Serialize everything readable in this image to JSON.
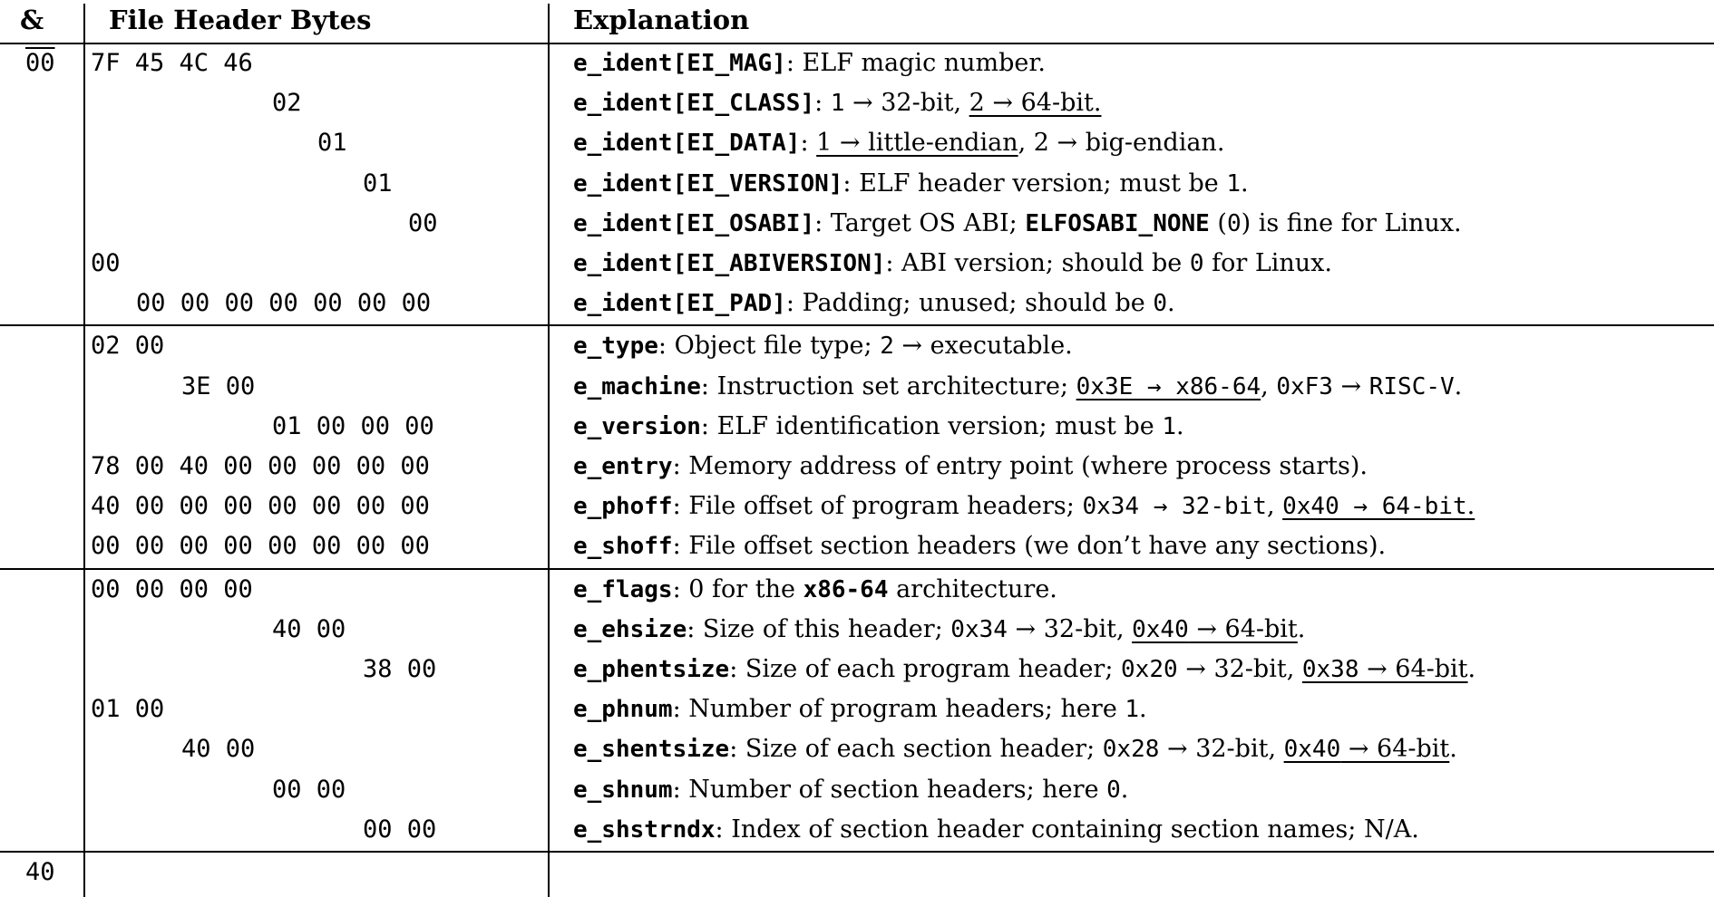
{
  "headers": {
    "offset": "&",
    "bytes": "File Header Bytes",
    "explanation": "Explanation"
  },
  "sections": [
    {
      "offset": "00",
      "rows": [
        {
          "bytes": "7F 45 4C 46",
          "col": 0,
          "expl": [
            {
              "t": "e_ident[EI_MAG]",
              "s": "field"
            },
            {
              "t": ": ELF magic number.",
              "s": "desc"
            }
          ]
        },
        {
          "bytes": "02",
          "col": 4,
          "expl": [
            {
              "t": "e_ident[EI_CLASS]",
              "s": "field"
            },
            {
              "t": ": ",
              "s": "desc"
            },
            {
              "t": "1",
              "s": "code"
            },
            {
              "t": " → 32-bit, ",
              "s": "desc"
            },
            {
              "t": "2 → 64-bit.",
              "s": "desc",
              "u": true
            }
          ]
        },
        {
          "bytes": "01",
          "col": 5,
          "expl": [
            {
              "t": "e_ident[EI_DATA]",
              "s": "field"
            },
            {
              "t": ": ",
              "s": "desc"
            },
            {
              "t": "1 → little-endian",
              "s": "desc",
              "u": true
            },
            {
              "t": ", 2 → big-endian.",
              "s": "desc"
            }
          ]
        },
        {
          "bytes": "01",
          "col": 6,
          "expl": [
            {
              "t": "e_ident[EI_VERSION]",
              "s": "field"
            },
            {
              "t": ": ELF header version; must be ",
              "s": "desc"
            },
            {
              "t": "1",
              "s": "code"
            },
            {
              "t": ".",
              "s": "desc"
            }
          ]
        },
        {
          "bytes": "00",
          "col": 7,
          "expl": [
            {
              "t": "e_ident[EI_OSABI]",
              "s": "field"
            },
            {
              "t": ": Target OS ABI; ",
              "s": "desc"
            },
            {
              "t": "ELFOSABI_NONE",
              "s": "field"
            },
            {
              "t": " (",
              "s": "desc"
            },
            {
              "t": "0",
              "s": "code"
            },
            {
              "t": ") is fine for Linux.",
              "s": "desc"
            }
          ]
        },
        {
          "bytes": "00",
          "col": 0,
          "expl": [
            {
              "t": "e_ident[EI_ABIVERSION]",
              "s": "field"
            },
            {
              "t": ": ABI version; should be ",
              "s": "desc"
            },
            {
              "t": "0",
              "s": "code"
            },
            {
              "t": " for Linux.",
              "s": "desc"
            }
          ]
        },
        {
          "bytes": "00 00 00 00 00 00 00",
          "col": 1,
          "expl": [
            {
              "t": "e_ident[EI_PAD]",
              "s": "field"
            },
            {
              "t": ": Padding; unused; should be ",
              "s": "desc"
            },
            {
              "t": "0",
              "s": "code"
            },
            {
              "t": ".",
              "s": "desc"
            }
          ]
        }
      ]
    },
    {
      "offset": "",
      "rows": [
        {
          "bytes": "02 00",
          "col": 0,
          "expl": [
            {
              "t": "e_type",
              "s": "field"
            },
            {
              "t": ": Object file type; ",
              "s": "desc"
            },
            {
              "t": "2",
              "s": "code"
            },
            {
              "t": " → executable.",
              "s": "desc"
            }
          ]
        },
        {
          "bytes": "3E 00",
          "col": 2,
          "expl": [
            {
              "t": "e_machine",
              "s": "field"
            },
            {
              "t": ": Instruction set architecture; ",
              "s": "desc"
            },
            {
              "t": "0x3E → x86-64",
              "s": "code",
              "u": true
            },
            {
              "t": ", ",
              "s": "desc"
            },
            {
              "t": "0xF3",
              "s": "code"
            },
            {
              "t": " → ",
              "s": "desc"
            },
            {
              "t": "RISC-V",
              "s": "code"
            },
            {
              "t": ".",
              "s": "desc"
            }
          ]
        },
        {
          "bytes": "01 00 00 00",
          "col": 4,
          "expl": [
            {
              "t": "e_version",
              "s": "field"
            },
            {
              "t": ": ELF identification version; must be ",
              "s": "desc"
            },
            {
              "t": "1",
              "s": "code"
            },
            {
              "t": ".",
              "s": "desc"
            }
          ]
        },
        {
          "bytes": "78 00 40 00 00 00 00 00",
          "col": 0,
          "expl": [
            {
              "t": "e_entry",
              "s": "field"
            },
            {
              "t": ": Memory address of entry point (where process starts).",
              "s": "desc"
            }
          ]
        },
        {
          "bytes": "40 00 00 00 00 00 00 00",
          "col": 0,
          "expl": [
            {
              "t": "e_phoff",
              "s": "field"
            },
            {
              "t": ": File offset of program headers; ",
              "s": "desc"
            },
            {
              "t": "0x34 → 32-bit",
              "s": "code"
            },
            {
              "t": ", ",
              "s": "desc"
            },
            {
              "t": "0x40 → 64-bit",
              "s": "code",
              "u": true
            },
            {
              "t": ".",
              "s": "desc",
              "u": true
            }
          ]
        },
        {
          "bytes": "00 00 00 00 00 00 00 00",
          "col": 0,
          "expl": [
            {
              "t": "e_shoff",
              "s": "field"
            },
            {
              "t": ": File offset section headers (we don’t have any sections).",
              "s": "desc"
            }
          ]
        }
      ]
    },
    {
      "offset": "",
      "rows": [
        {
          "bytes": "00 00 00 00",
          "col": 0,
          "expl": [
            {
              "t": "e_flags",
              "s": "field"
            },
            {
              "t": ": 0 for the ",
              "s": "desc"
            },
            {
              "t": "x86-64",
              "s": "field"
            },
            {
              "t": " architecture.",
              "s": "desc"
            }
          ]
        },
        {
          "bytes": "40 00",
          "col": 4,
          "expl": [
            {
              "t": "e_ehsize",
              "s": "field"
            },
            {
              "t": ": Size of this header; ",
              "s": "desc"
            },
            {
              "t": "0x34",
              "s": "code"
            },
            {
              "t": " → 32-bit, ",
              "s": "desc"
            },
            {
              "t": "0x40",
              "s": "code",
              "u": true
            },
            {
              "t": " → 64-bit",
              "s": "desc",
              "u": true
            },
            {
              "t": ".",
              "s": "desc"
            }
          ]
        },
        {
          "bytes": "38 00",
          "col": 6,
          "expl": [
            {
              "t": "e_phentsize",
              "s": "field"
            },
            {
              "t": ": Size of each program header; ",
              "s": "desc"
            },
            {
              "t": "0x20",
              "s": "code"
            },
            {
              "t": " → 32-bit, ",
              "s": "desc"
            },
            {
              "t": "0x38",
              "s": "code",
              "u": true
            },
            {
              "t": " → 64-bit",
              "s": "desc",
              "u": true
            },
            {
              "t": ".",
              "s": "desc"
            }
          ]
        },
        {
          "bytes": "01 00",
          "col": 0,
          "expl": [
            {
              "t": "e_phnum",
              "s": "field"
            },
            {
              "t": ": Number of program headers; here ",
              "s": "desc"
            },
            {
              "t": "1",
              "s": "code"
            },
            {
              "t": ".",
              "s": "desc"
            }
          ]
        },
        {
          "bytes": "40 00",
          "col": 2,
          "expl": [
            {
              "t": "e_shentsize",
              "s": "field"
            },
            {
              "t": ": Size of each section header; ",
              "s": "desc"
            },
            {
              "t": "0x28",
              "s": "code"
            },
            {
              "t": " → 32-bit, ",
              "s": "desc"
            },
            {
              "t": "0x40",
              "s": "code",
              "u": true
            },
            {
              "t": " → 64-bit",
              "s": "desc",
              "u": true
            },
            {
              "t": ".",
              "s": "desc"
            }
          ]
        },
        {
          "bytes": "00 00",
          "col": 4,
          "expl": [
            {
              "t": "e_shnum",
              "s": "field"
            },
            {
              "t": ": Number of section headers; here ",
              "s": "desc"
            },
            {
              "t": "0",
              "s": "code"
            },
            {
              "t": ".",
              "s": "desc"
            }
          ]
        },
        {
          "bytes": "00 00",
          "col": 6,
          "expl": [
            {
              "t": "e_shstrndx",
              "s": "field"
            },
            {
              "t": ": Index of section header containing section names; N/A.",
              "s": "desc"
            }
          ]
        }
      ]
    }
  ],
  "footer_offset": "40"
}
